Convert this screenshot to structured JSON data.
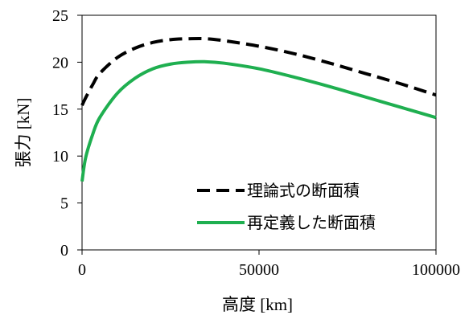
{
  "chart_data": {
    "type": "line",
    "xlabel": "高度 [km]",
    "ylabel": "張力 [kN]",
    "xlim": [
      0,
      100000
    ],
    "ylim": [
      0,
      25
    ],
    "xticks": [
      0,
      50000,
      100000
    ],
    "yticks": [
      0,
      5,
      10,
      15,
      20,
      25
    ],
    "xtick_labels": [
      "0",
      "50000",
      "100000"
    ],
    "ytick_labels": [
      "0",
      "5",
      "10",
      "15",
      "20",
      "25"
    ],
    "grid": false,
    "legend_position": "bottom-right, inside plot",
    "series": [
      {
        "name": "理論式の断面積",
        "color": "#000000",
        "dash": "dashed",
        "x": [
          0,
          1000,
          3000,
          5000,
          10000,
          15000,
          20000,
          25000,
          30000,
          35000,
          40000,
          50000,
          60000,
          70000,
          80000,
          90000,
          100000
        ],
        "y": [
          15.4,
          16.2,
          17.6,
          18.8,
          20.5,
          21.5,
          22.1,
          22.4,
          22.5,
          22.5,
          22.3,
          21.7,
          20.9,
          19.9,
          18.8,
          17.7,
          16.5
        ]
      },
      {
        "name": "再定義した断面積",
        "color": "#1faf50",
        "dash": "solid",
        "x": [
          0,
          1000,
          3000,
          5000,
          10000,
          15000,
          20000,
          25000,
          30000,
          35000,
          40000,
          50000,
          60000,
          70000,
          80000,
          90000,
          100000
        ],
        "y": [
          7.3,
          9.8,
          12.3,
          14.1,
          16.7,
          18.3,
          19.3,
          19.8,
          20.0,
          20.05,
          19.9,
          19.3,
          18.4,
          17.4,
          16.3,
          15.2,
          14.1
        ]
      }
    ]
  }
}
